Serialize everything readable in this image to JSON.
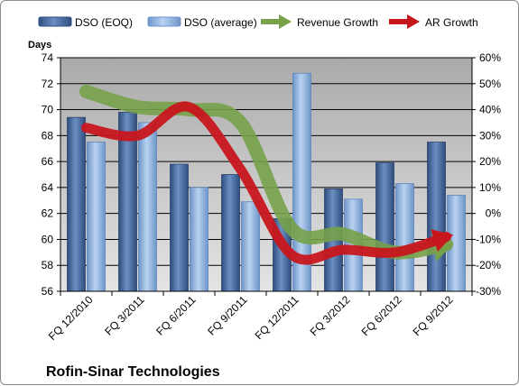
{
  "chart_data": {
    "type": "bar",
    "title": "",
    "company_label": "Rofin-Sinar Technologies",
    "ylabel": "Days",
    "xlabel": "",
    "categories": [
      "FQ 12/2010",
      "FQ 3/2011",
      "FQ 6/2011",
      "FQ 9/2011",
      "FQ 12/2011",
      "FQ 3/2012",
      "FQ 6/2012",
      "FQ 9/2012"
    ],
    "ylim": [
      56,
      74
    ],
    "y_ticks": [
      56,
      58,
      60,
      62,
      64,
      66,
      68,
      70,
      72,
      74
    ],
    "y2lim": [
      -30,
      60
    ],
    "y2_ticks": [
      -30,
      -20,
      -10,
      0,
      10,
      20,
      30,
      40,
      50,
      60
    ],
    "y2_tick_suffix": "%",
    "legend_position": "top",
    "grid": true,
    "series": [
      {
        "name": "DSO (EOQ)",
        "type": "bar",
        "axis": "left",
        "color": "#4a6fa5",
        "values": [
          69.4,
          69.8,
          65.8,
          65.0,
          61.6,
          63.9,
          65.9,
          67.5
        ]
      },
      {
        "name": "DSO (average)",
        "type": "bar",
        "axis": "left",
        "color": "#8fb3e0",
        "values": [
          67.5,
          69.0,
          64.0,
          62.9,
          72.8,
          63.1,
          64.3,
          63.4
        ]
      },
      {
        "name": "Revenue Growth",
        "type": "line",
        "axis": "right",
        "color": "#77a14a",
        "unit": "%",
        "values": [
          47,
          41,
          40,
          35,
          -6,
          -8,
          -15,
          -12
        ]
      },
      {
        "name": "AR Growth",
        "type": "line",
        "axis": "right",
        "color": "#c8161d",
        "unit": "%",
        "values": [
          33,
          30,
          41,
          17,
          -16,
          -14,
          -15,
          -9
        ]
      }
    ]
  }
}
